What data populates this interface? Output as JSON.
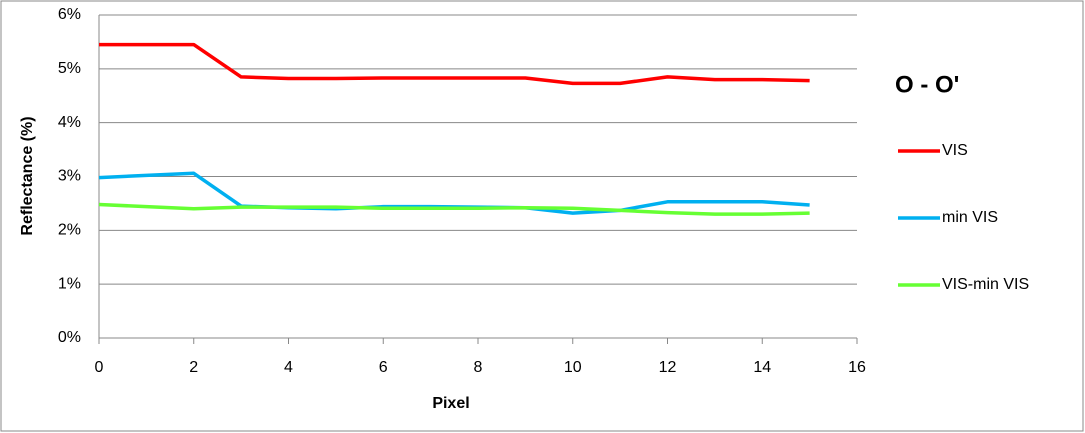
{
  "chart_data": {
    "type": "line",
    "legend_title": "O - O'",
    "x_label": "Pixel",
    "y_label": "Reflectance (%)",
    "x": [
      0,
      1,
      2,
      3,
      4,
      5,
      6,
      7,
      8,
      9,
      10,
      11,
      12,
      13,
      14,
      15
    ],
    "series": [
      {
        "name": "VIS",
        "color": "#ff0000",
        "values": [
          5.45,
          5.45,
          5.45,
          4.85,
          4.82,
          4.82,
          4.83,
          4.83,
          4.83,
          4.83,
          4.73,
          4.73,
          4.85,
          4.8,
          4.8,
          4.78
        ]
      },
      {
        "name": "min VIS",
        "color": "#00b0f0",
        "values": [
          2.98,
          3.02,
          3.06,
          2.45,
          2.42,
          2.4,
          2.44,
          2.44,
          2.43,
          2.42,
          2.32,
          2.37,
          2.53,
          2.53,
          2.53,
          2.47
        ]
      },
      {
        "name": "VIS-min VIS",
        "color": "#66ff33",
        "values": [
          2.48,
          2.44,
          2.4,
          2.43,
          2.43,
          2.43,
          2.41,
          2.41,
          2.41,
          2.42,
          2.41,
          2.37,
          2.33,
          2.3,
          2.3,
          2.32
        ]
      }
    ],
    "xlim": [
      0,
      16
    ],
    "xticks": [
      0,
      2,
      4,
      6,
      8,
      10,
      12,
      14,
      16
    ],
    "ylim": [
      0,
      6
    ],
    "yticks": [
      {
        "value": 0,
        "label": "0%"
      },
      {
        "value": 1,
        "label": "1%"
      },
      {
        "value": 2,
        "label": "2%"
      },
      {
        "value": 3,
        "label": "3%"
      },
      {
        "value": 4,
        "label": "4%"
      },
      {
        "value": 5,
        "label": "5%"
      },
      {
        "value": 6,
        "label": "6%"
      }
    ],
    "grid": true,
    "legend": "right"
  }
}
